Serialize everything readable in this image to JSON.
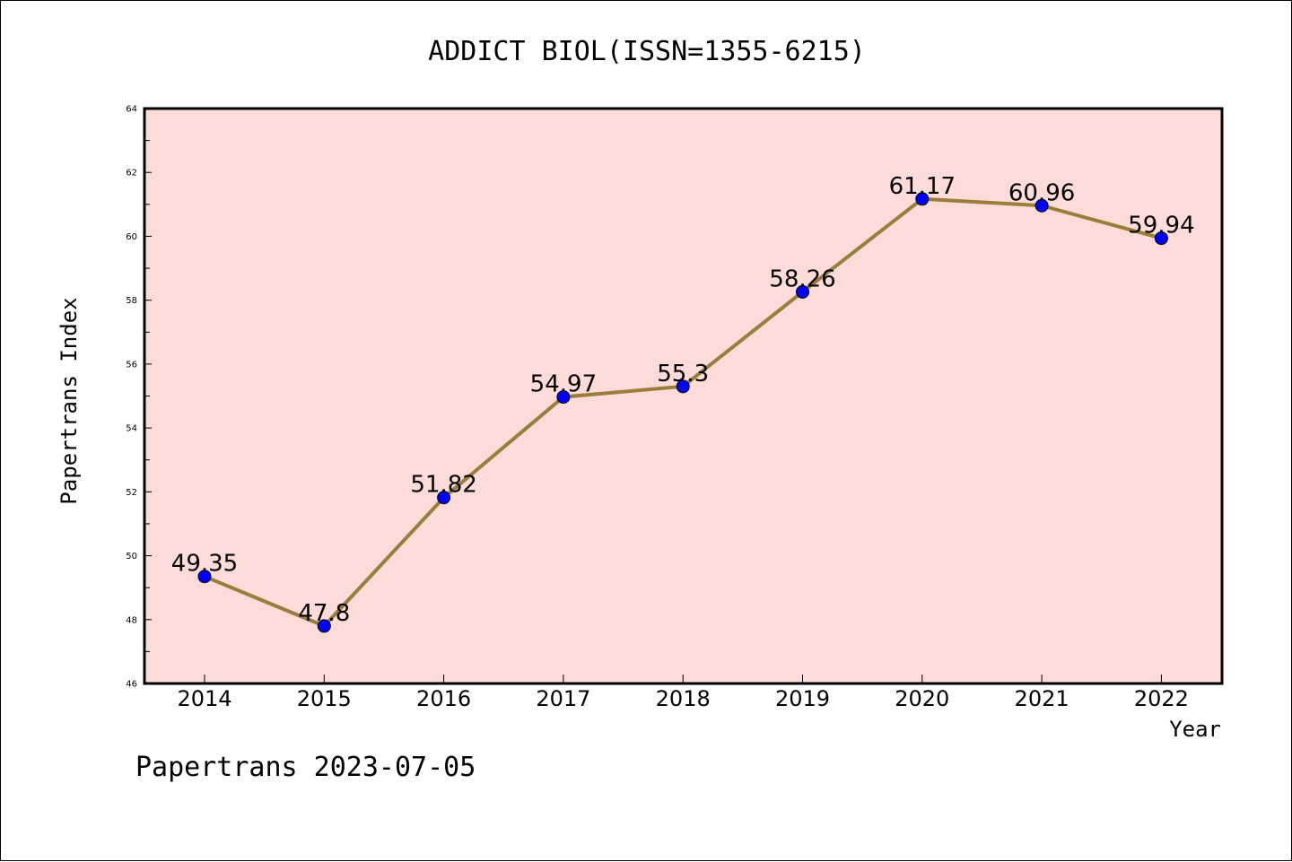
{
  "chart_data": {
    "type": "line",
    "title": "ADDICT BIOL(ISSN=1355-6215)",
    "xlabel": "Year",
    "ylabel": "Papertrans Index",
    "categories": [
      "2014",
      "2015",
      "2016",
      "2017",
      "2018",
      "2019",
      "2020",
      "2021",
      "2022"
    ],
    "series": [
      {
        "values": [
          49.35,
          47.8,
          51.82,
          54.97,
          55.3,
          58.26,
          61.17,
          60.96,
          59.94
        ],
        "data_labels": [
          "49.35",
          "47.8",
          "51.82",
          "54.97",
          "55.3",
          "58.26",
          "61.17",
          "60.96",
          "59.94"
        ]
      }
    ],
    "ylim": [
      46,
      64
    ],
    "yticks": [
      "46",
      "48",
      "50",
      "52",
      "54",
      "56",
      "58",
      "60",
      "62",
      "64"
    ],
    "grid": false,
    "plot_background": "#fddbd8",
    "line_color": "#9a7d3a",
    "marker_color": "#0000ff"
  },
  "footer": "Papertrans 2023-07-05"
}
